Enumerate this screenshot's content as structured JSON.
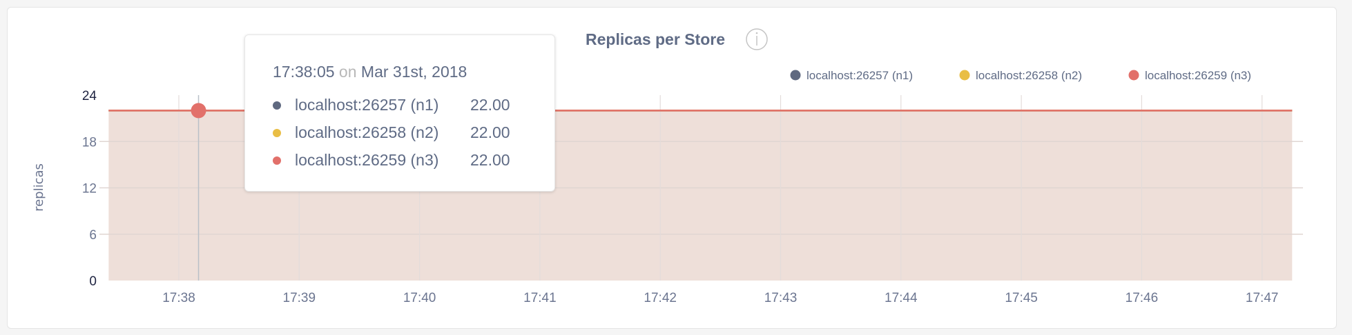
{
  "chart_data": {
    "type": "area",
    "title": "Replicas per Store",
    "title_icon": "info-icon",
    "ylabel": "replicas",
    "xlabel": "",
    "ylim": [
      0,
      24
    ],
    "yticks": [
      "0",
      "6",
      "12",
      "18",
      "24"
    ],
    "xticks": [
      "17:38",
      "17:39",
      "17:40",
      "17:41",
      "17:42",
      "17:43",
      "17:44",
      "17:45",
      "17:46",
      "17:47"
    ],
    "grid": true,
    "legend_position": "top-right",
    "x": [
      "17:37:25",
      "17:37:55",
      "17:38:25",
      "17:38:55",
      "17:39:25",
      "17:39:55",
      "17:40:25",
      "17:40:55",
      "17:41:25",
      "17:41:55",
      "17:42:25",
      "17:42:55",
      "17:43:25",
      "17:43:55",
      "17:44:25",
      "17:44:55",
      "17:45:25",
      "17:45:55",
      "17:46:25",
      "17:46:55",
      "17:47:15"
    ],
    "series": [
      {
        "name": "localhost:26257 (n1)",
        "color": "#5f6980",
        "values": [
          22,
          22,
          22,
          22,
          22,
          22,
          22,
          22,
          22,
          22,
          22,
          22,
          22,
          22,
          22,
          22,
          22,
          22,
          22,
          22,
          22
        ]
      },
      {
        "name": "localhost:26258 (n2)",
        "color": "#e9be45",
        "values": [
          22,
          22,
          22,
          22,
          22,
          22,
          22,
          22,
          22,
          22,
          22,
          22,
          22,
          22,
          22,
          22,
          22,
          22,
          22,
          22,
          22
        ]
      },
      {
        "name": "localhost:26259 (n3)",
        "color": "#e2706a",
        "values": [
          22,
          22,
          22,
          22,
          22,
          22,
          22,
          22,
          22,
          22,
          22,
          22,
          22,
          22,
          22,
          22,
          22,
          22,
          22,
          22,
          22
        ]
      }
    ],
    "area_fill": "#eedfd9",
    "hover": {
      "time": "17:38:05",
      "on": "on",
      "date": "Mar 31st, 2018",
      "rows": [
        {
          "name": "localhost:26257 (n1)",
          "value": "22.00"
        },
        {
          "name": "localhost:26258 (n2)",
          "value": "22.00"
        },
        {
          "name": "localhost:26259 (n3)",
          "value": "22.00"
        }
      ]
    }
  }
}
